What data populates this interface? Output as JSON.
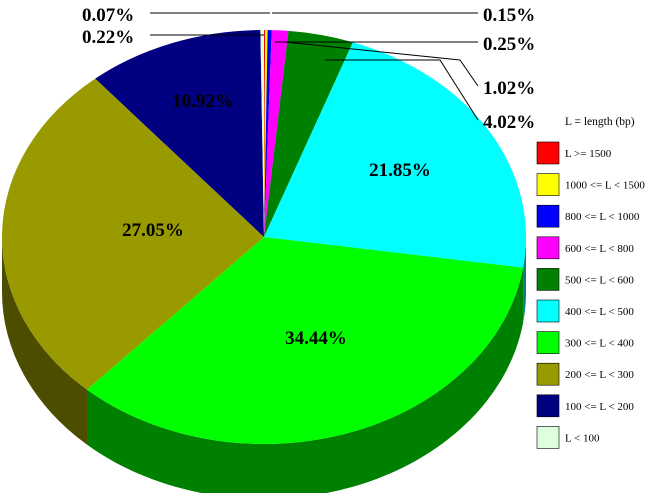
{
  "chart_data": {
    "type": "pie",
    "style": "3d",
    "legend_title": "L = length (bp)",
    "legend_position": "right",
    "slices": [
      {
        "label": "L >= 1500",
        "value": 0.07,
        "display": "0.07%",
        "color": "#ff0000"
      },
      {
        "label": "1000 <= L < 1500",
        "value": 0.15,
        "display": "0.15%",
        "color": "#ffff00"
      },
      {
        "label": "800 <= L < 1000",
        "value": 0.25,
        "display": "0.25%",
        "color": "#0000ff"
      },
      {
        "label": "600 <= L < 800",
        "value": 1.02,
        "display": "1.02%",
        "color": "#ff00ff"
      },
      {
        "label": "500 <= L < 600",
        "value": 4.02,
        "display": "4.02%",
        "color": "#008000"
      },
      {
        "label": "400 <= L < 500",
        "value": 21.85,
        "display": "21.85%",
        "color": "#00ffff"
      },
      {
        "label": "300 <= L < 400",
        "value": 34.44,
        "display": "34.44%",
        "color": "#00ff00"
      },
      {
        "label": "200 <= L < 300",
        "value": 27.05,
        "display": "27.05%",
        "color": "#999900"
      },
      {
        "label": "100 <= L < 200",
        "value": 10.92,
        "display": "10.92%",
        "color": "#000080"
      },
      {
        "label": "L < 100",
        "value": 0.22,
        "display": "0.22%",
        "color": "#ddffdd"
      }
    ]
  }
}
